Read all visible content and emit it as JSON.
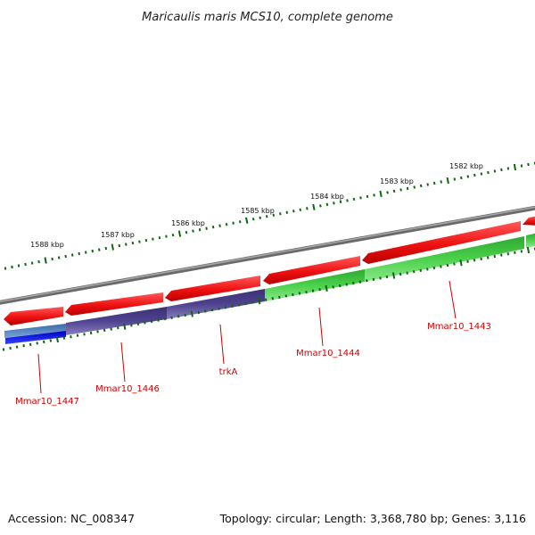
{
  "title": "Maricaulis maris MCS10, complete genome",
  "accession": "Accession: NC_008347",
  "topology": "Topology: circular; Length: 3,368,780 bp; Genes: 3,116",
  "ticks": [
    "1588 kbp",
    "1587 kbp",
    "1586 kbp",
    "1585 kbp",
    "1584 kbp",
    "1583 kbp",
    "1582 kbp"
  ],
  "genes": [
    {
      "name": "Mmar10_1447"
    },
    {
      "name": "Mmar10_1446"
    },
    {
      "name": "trkA"
    },
    {
      "name": "Mmar10_1444"
    },
    {
      "name": "Mmar10_1443"
    }
  ],
  "colors": {
    "backbone": "#808080",
    "cds_forward": "#ee1111",
    "cds_reverse": "#33cc33",
    "purple_feature": "#4a3d8a",
    "blue_feature": "#1122dd",
    "steelblue_feature": "#4a7ab8",
    "tick": "#116611",
    "label_red": "#cc0000"
  }
}
